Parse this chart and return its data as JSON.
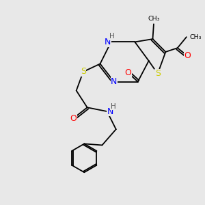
{
  "bg_color": "#e8e8e8",
  "bond_color": "#000000",
  "atom_colors": {
    "N": "#0000ff",
    "S": "#cccc00",
    "O": "#ff0000",
    "H": "#555555",
    "C": "#000000"
  },
  "font_size_atom": 9,
  "font_size_small": 7.5
}
